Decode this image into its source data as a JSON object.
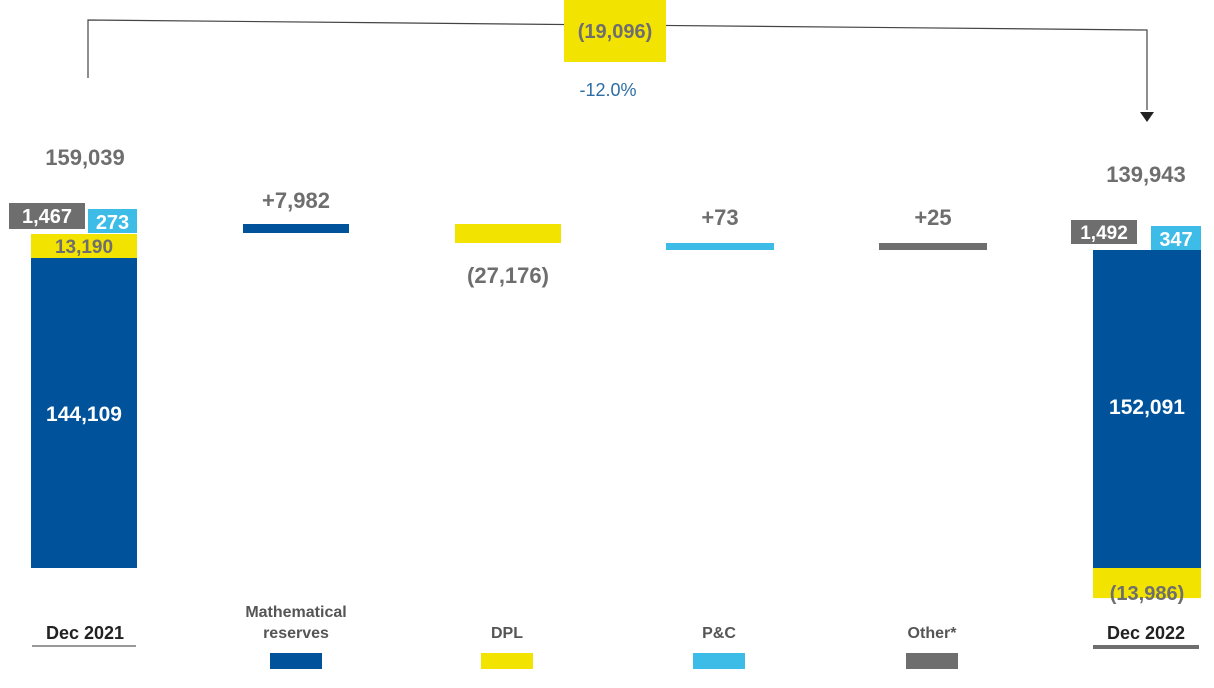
{
  "chart_data": {
    "type": "bar",
    "subtype": "waterfall",
    "unit_hint": "thousands",
    "colors": {
      "mathematical_reserves": "#00529B",
      "dpl": "#F2E300",
      "pc": "#3DBCE8",
      "other": "#6E6E6E",
      "category_label": "#555555",
      "value_label": "#6E6E6E",
      "pct_label": "#2E6DA4",
      "connector": "#444444"
    },
    "categories": [
      "Dec 2021",
      "Mathematical reserves",
      "DPL",
      "P&C",
      "Other*",
      "Dec 2022"
    ],
    "legend_labels": {
      "mathematical_reserves": [
        "Mathematical",
        "reserves"
      ],
      "dpl": "DPL",
      "pc": "P&C",
      "other": "Other*"
    },
    "totals": [
      {
        "label": "Dec 2021",
        "total": 159039,
        "total_label": "159,039",
        "segments": [
          {
            "key": "mathematical_reserves",
            "value": 144109,
            "label": "144,109"
          },
          {
            "key": "dpl",
            "value": 13190,
            "label": "13,190"
          },
          {
            "key": "pc",
            "value": 273,
            "label": "273"
          },
          {
            "key": "other",
            "value": 1467,
            "label": "1,467"
          }
        ]
      },
      {
        "label": "Dec 2022",
        "total": 139943,
        "total_label": "139,943",
        "segments": [
          {
            "key": "dpl",
            "value": -13986,
            "label": "(13,986)"
          },
          {
            "key": "mathematical_reserves",
            "value": 152091,
            "label": "152,091"
          },
          {
            "key": "pc",
            "value": 347,
            "label": "347"
          },
          {
            "key": "other",
            "value": 1492,
            "label": "1,492"
          }
        ]
      }
    ],
    "changes": [
      {
        "key": "mathematical_reserves",
        "value": 7982,
        "label": "+7,982"
      },
      {
        "key": "dpl",
        "value": -27176,
        "label": "(27,176)"
      },
      {
        "key": "pc",
        "value": 73,
        "label": "+73"
      },
      {
        "key": "other",
        "value": 25,
        "label": "+25"
      }
    ],
    "overall_change": {
      "value": -19096,
      "label": "(19,096)",
      "pct_label": "-12.0%"
    }
  }
}
